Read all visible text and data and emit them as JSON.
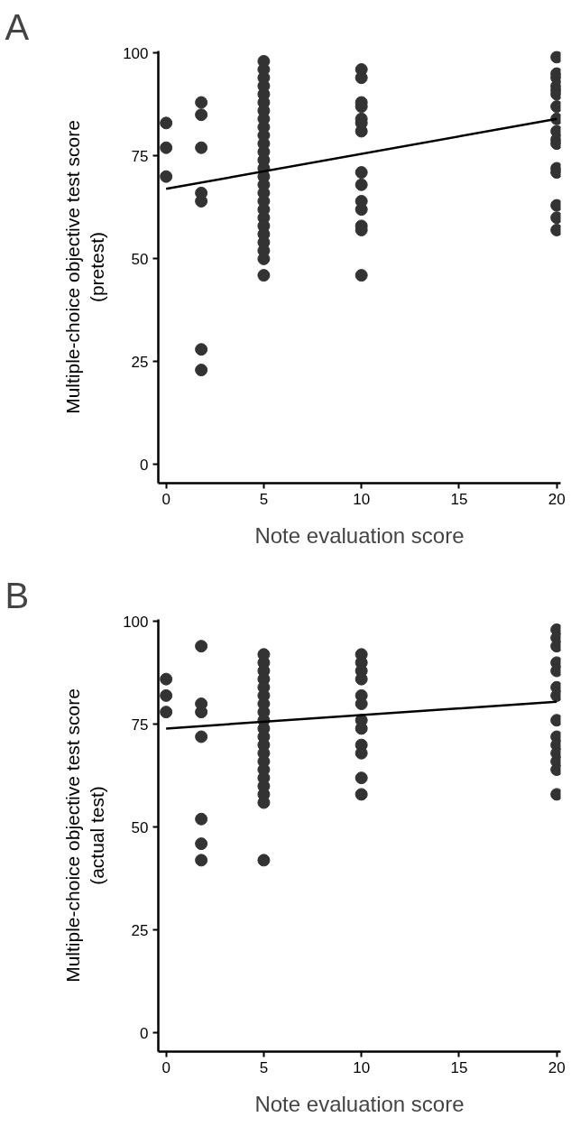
{
  "chart_data": [
    {
      "type": "scatter",
      "annotations": [
        "A"
      ],
      "xlabel": "Note evaluation score",
      "ylabel": "Multiple-choice objective test score\n(pretest)",
      "marker": "circle",
      "xlim": [
        -0.4,
        20.2
      ],
      "ylim": [
        -4.5,
        100.5
      ],
      "xticks": [
        0,
        5,
        10,
        15,
        20
      ],
      "yticks": [
        0,
        25,
        50,
        75,
        100
      ],
      "grid": false,
      "series": [
        {
          "color": "#333333",
          "x": [
            0,
            0,
            0,
            1.8,
            1.8,
            1.8,
            1.8,
            1.8,
            1.8,
            1.8,
            5,
            5,
            5,
            5,
            5,
            5,
            5,
            5,
            5,
            5,
            5,
            5,
            5,
            5,
            5,
            5,
            5,
            5,
            5,
            5,
            5,
            5,
            5,
            5,
            5,
            5,
            10,
            10,
            10,
            10,
            10,
            10,
            10,
            10,
            10,
            10,
            10,
            10,
            10,
            10,
            20,
            20,
            20,
            20,
            20,
            20,
            20,
            20,
            20,
            20,
            20,
            20,
            20,
            20,
            20,
            20
          ],
          "values": [
            83,
            77,
            70,
            88,
            85,
            77,
            66,
            64,
            28,
            23,
            98,
            96,
            94,
            92,
            90,
            88,
            86,
            84,
            82,
            80,
            78,
            76,
            74,
            72,
            70,
            68,
            66,
            64,
            62,
            60,
            58,
            56,
            54,
            52,
            50,
            46,
            96,
            94,
            88,
            87,
            84,
            83,
            81,
            71,
            68,
            64,
            62,
            58,
            57,
            46,
            99,
            95,
            94,
            92,
            91,
            90,
            87,
            84,
            81,
            79,
            78,
            72,
            71,
            63,
            60,
            57
          ]
        },
        {
          "type": "line",
          "color": "#000000",
          "marker": "none",
          "x": [
            0,
            20
          ],
          "values": [
            67,
            84
          ]
        }
      ]
    },
    {
      "type": "scatter",
      "annotations": [
        "B"
      ],
      "xlabel": "Note evaluation score",
      "ylabel": "Multiple-choice objective test score\n(actual test)",
      "marker": "circle",
      "xlim": [
        -0.4,
        20.2
      ],
      "ylim": [
        -4.5,
        100.5
      ],
      "xticks": [
        0,
        5,
        10,
        15,
        20
      ],
      "yticks": [
        0,
        25,
        50,
        75,
        100
      ],
      "grid": false,
      "series": [
        {
          "color": "#333333",
          "x": [
            0,
            0,
            0,
            1.8,
            1.8,
            1.8,
            1.8,
            1.8,
            1.8,
            1.8,
            5,
            5,
            5,
            5,
            5,
            5,
            5,
            5,
            5,
            5,
            5,
            5,
            5,
            5,
            5,
            5,
            5,
            5,
            5,
            5,
            10,
            10,
            10,
            10,
            10,
            10,
            10,
            10,
            10,
            10,
            10,
            10,
            20,
            20,
            20,
            20,
            20,
            20,
            20,
            20,
            20,
            20,
            20,
            20,
            20,
            20
          ],
          "values": [
            86,
            82,
            78,
            94,
            80,
            78,
            72,
            52,
            46,
            42,
            92,
            90,
            88,
            86,
            84,
            82,
            80,
            78,
            76,
            74,
            72,
            70,
            68,
            66,
            64,
            62,
            60,
            58,
            56,
            42,
            92,
            90,
            88,
            86,
            82,
            80,
            76,
            74,
            70,
            68,
            62,
            58,
            98,
            96,
            94,
            90,
            88,
            84,
            82,
            76,
            72,
            70,
            68,
            66,
            64,
            58
          ]
        },
        {
          "type": "line",
          "color": "#000000",
          "marker": "none",
          "x": [
            0,
            20
          ],
          "values": [
            74,
            80.5
          ]
        }
      ]
    }
  ]
}
